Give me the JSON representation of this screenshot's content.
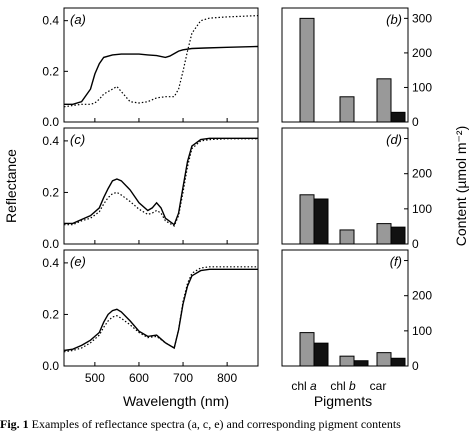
{
  "caption": {
    "bold": "Fig. 1",
    "text": "Examples of reflectance spectra (a, c, e) and corresponding pigment contents"
  },
  "chart_data": [
    {
      "panel": "a",
      "type": "line",
      "xlabel": "",
      "ylabel": "",
      "xlim": [
        430,
        870
      ],
      "ylim": [
        0,
        0.45
      ],
      "xticks": [],
      "yticks": [
        "0.0",
        "0.2",
        "0.4"
      ],
      "series": [
        {
          "style": "solid",
          "x": [
            430,
            450,
            470,
            490,
            500,
            510,
            520,
            540,
            560,
            580,
            600,
            620,
            640,
            660,
            670,
            680,
            690,
            700,
            720,
            750,
            800,
            870
          ],
          "y": [
            0.07,
            0.07,
            0.08,
            0.13,
            0.19,
            0.23,
            0.255,
            0.265,
            0.268,
            0.268,
            0.268,
            0.265,
            0.262,
            0.255,
            0.26,
            0.27,
            0.28,
            0.285,
            0.29,
            0.292,
            0.295,
            0.298
          ]
        },
        {
          "style": "dotted",
          "x": [
            430,
            450,
            470,
            490,
            500,
            510,
            520,
            540,
            550,
            560,
            580,
            600,
            620,
            640,
            660,
            680,
            690,
            700,
            710,
            720,
            740,
            760,
            800,
            870
          ],
          "y": [
            0.06,
            0.065,
            0.07,
            0.07,
            0.075,
            0.09,
            0.11,
            0.13,
            0.14,
            0.12,
            0.08,
            0.075,
            0.08,
            0.095,
            0.1,
            0.1,
            0.13,
            0.2,
            0.28,
            0.35,
            0.4,
            0.41,
            0.415,
            0.42
          ]
        }
      ]
    },
    {
      "panel": "c",
      "type": "line",
      "xlabel": "",
      "ylabel": "",
      "xlim": [
        430,
        870
      ],
      "ylim": [
        0,
        0.45
      ],
      "xticks": [],
      "yticks": [
        "0.0",
        "0.2",
        "0.4"
      ],
      "series": [
        {
          "style": "solid",
          "x": [
            430,
            450,
            470,
            490,
            510,
            520,
            530,
            540,
            550,
            560,
            580,
            600,
            620,
            630,
            640,
            650,
            660,
            680,
            690,
            700,
            710,
            720,
            740,
            760,
            800,
            870
          ],
          "y": [
            0.08,
            0.08,
            0.095,
            0.11,
            0.14,
            0.18,
            0.215,
            0.245,
            0.252,
            0.245,
            0.21,
            0.16,
            0.13,
            0.14,
            0.16,
            0.14,
            0.1,
            0.075,
            0.12,
            0.22,
            0.32,
            0.38,
            0.405,
            0.41,
            0.41,
            0.41
          ]
        },
        {
          "style": "dotted",
          "x": [
            430,
            450,
            470,
            490,
            510,
            520,
            530,
            540,
            550,
            560,
            580,
            600,
            620,
            630,
            640,
            650,
            660,
            680,
            690,
            700,
            710,
            720,
            740,
            760,
            800,
            870
          ],
          "y": [
            0.075,
            0.075,
            0.09,
            0.1,
            0.125,
            0.155,
            0.18,
            0.195,
            0.2,
            0.19,
            0.165,
            0.135,
            0.115,
            0.12,
            0.13,
            0.12,
            0.09,
            0.07,
            0.11,
            0.2,
            0.3,
            0.37,
            0.4,
            0.405,
            0.408,
            0.408
          ]
        }
      ]
    },
    {
      "panel": "e",
      "type": "line",
      "xlabel": "Wavelength (nm)",
      "ylabel": "",
      "xlim": [
        430,
        870
      ],
      "ylim": [
        0,
        0.45
      ],
      "xticks": [
        "500",
        "600",
        "700",
        "800"
      ],
      "yticks": [
        "0.0",
        "0.2",
        "0.4"
      ],
      "series": [
        {
          "style": "solid",
          "x": [
            430,
            450,
            470,
            490,
            510,
            520,
            530,
            540,
            550,
            560,
            580,
            600,
            620,
            640,
            660,
            680,
            690,
            700,
            710,
            720,
            740,
            760,
            800,
            870
          ],
          "y": [
            0.06,
            0.065,
            0.08,
            0.1,
            0.13,
            0.17,
            0.2,
            0.215,
            0.22,
            0.21,
            0.175,
            0.135,
            0.115,
            0.12,
            0.09,
            0.07,
            0.14,
            0.24,
            0.31,
            0.35,
            0.37,
            0.375,
            0.375,
            0.375
          ]
        },
        {
          "style": "dotted",
          "x": [
            430,
            450,
            470,
            490,
            510,
            520,
            530,
            540,
            550,
            560,
            580,
            600,
            620,
            640,
            660,
            680,
            690,
            700,
            710,
            720,
            740,
            760,
            800,
            870
          ],
          "y": [
            0.055,
            0.06,
            0.07,
            0.09,
            0.12,
            0.15,
            0.175,
            0.19,
            0.195,
            0.185,
            0.16,
            0.13,
            0.11,
            0.115,
            0.09,
            0.07,
            0.14,
            0.25,
            0.32,
            0.36,
            0.38,
            0.385,
            0.385,
            0.385
          ]
        }
      ]
    },
    {
      "panel": "b",
      "type": "bar",
      "categories": [
        "chl a",
        "chl b",
        "car"
      ],
      "ylim": [
        0,
        330
      ],
      "yticks": [
        "0",
        "100",
        "200",
        "300"
      ],
      "series": [
        {
          "color": "#999999",
          "values": [
            300,
            73,
            125
          ]
        },
        {
          "color": "#111111",
          "values": [
            0,
            0,
            28
          ]
        }
      ]
    },
    {
      "panel": "d",
      "type": "bar",
      "categories": [
        "chl a",
        "chl b",
        "car"
      ],
      "ylim": [
        0,
        330
      ],
      "yticks": [
        "0",
        "100",
        "200"
      ],
      "series": [
        {
          "color": "#999999",
          "values": [
            140,
            40,
            58
          ]
        },
        {
          "color": "#111111",
          "values": [
            128,
            0,
            48
          ]
        }
      ]
    },
    {
      "panel": "f",
      "type": "bar",
      "categories": [
        "chl a",
        "chl b",
        "car"
      ],
      "ylim": [
        0,
        330
      ],
      "yticks": [
        "0",
        "100",
        "200"
      ],
      "xlabel": "Pigments",
      "series": [
        {
          "color": "#999999",
          "values": [
            95,
            28,
            38
          ]
        },
        {
          "color": "#111111",
          "values": [
            65,
            15,
            22
          ]
        }
      ]
    }
  ],
  "labels": {
    "left_ylabel": "Reflectance",
    "right_ylabel": "Content (µmol m⁻²)",
    "xlabel_left": "Wavelength (nm)",
    "xlabel_right": "Pigments",
    "cat1_main": "chl",
    "cat1_italic": "a",
    "cat2_main": "chl",
    "cat2_italic": "b",
    "cat3": "car"
  }
}
